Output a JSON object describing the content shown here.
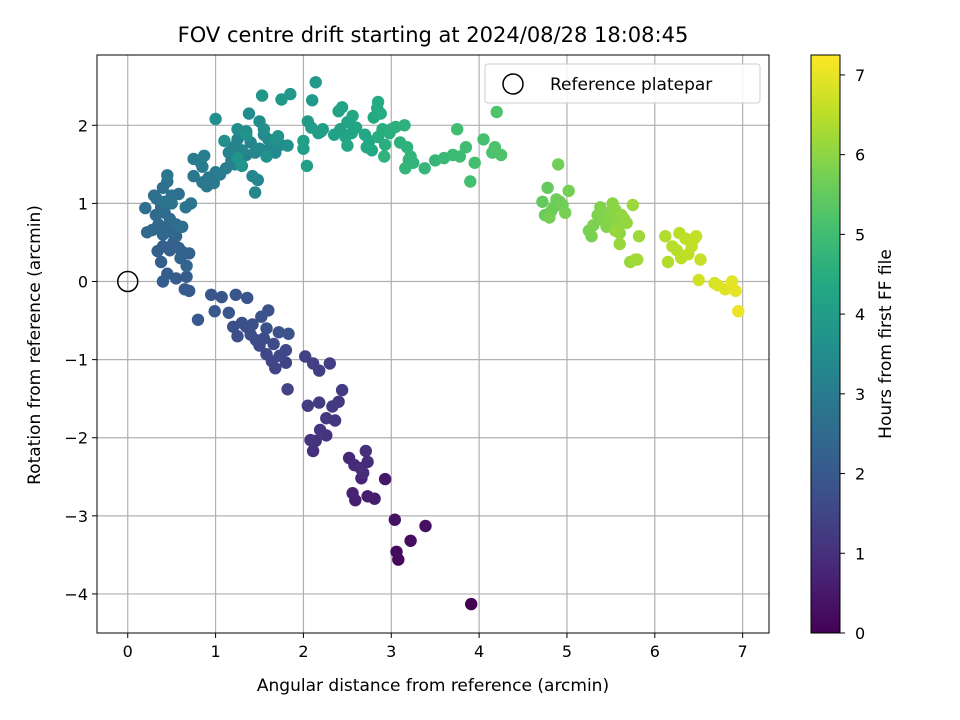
{
  "chart_data": {
    "type": "scatter",
    "title": "FOV centre drift starting at 2024/08/28 18:08:45",
    "xlabel": "Angular distance from reference (arcmin)",
    "ylabel": "Rotation from reference (arcmin)",
    "xlim": [
      -0.35,
      7.3
    ],
    "ylim": [
      -4.5,
      2.9
    ],
    "xticks": [
      0,
      1,
      2,
      3,
      4,
      5,
      6,
      7
    ],
    "yticks": [
      -4,
      -3,
      -2,
      -1,
      0,
      1,
      2
    ],
    "grid": true,
    "legend": {
      "placement": "top-right",
      "entries": [
        "Reference platepar"
      ]
    },
    "reference_point": {
      "x": 0,
      "y": 0,
      "marker": "open-circle"
    },
    "colorbar": {
      "label": "Hours from first FF file",
      "range": [
        0,
        7.25
      ],
      "ticks": [
        0,
        1,
        2,
        3,
        4,
        5,
        6,
        7
      ],
      "colormap": "viridis"
    },
    "points": [
      [
        3.91,
        -4.13,
        0.0
      ],
      [
        3.08,
        -3.56,
        0.15
      ],
      [
        3.06,
        -3.46,
        0.2
      ],
      [
        3.22,
        -3.32,
        0.25
      ],
      [
        3.39,
        -3.13,
        0.3
      ],
      [
        3.04,
        -3.05,
        0.35
      ],
      [
        2.93,
        -2.53,
        0.45
      ],
      [
        2.81,
        -2.78,
        0.55
      ],
      [
        2.73,
        -2.75,
        0.6
      ],
      [
        2.59,
        -2.8,
        0.65
      ],
      [
        2.56,
        -2.71,
        0.7
      ],
      [
        2.66,
        -2.52,
        0.75
      ],
      [
        2.52,
        -2.26,
        0.8
      ],
      [
        2.58,
        -2.35,
        0.85
      ],
      [
        2.65,
        -2.39,
        0.9
      ],
      [
        2.73,
        -2.31,
        0.92
      ],
      [
        2.68,
        -2.45,
        0.95
      ],
      [
        2.71,
        -2.17,
        0.97
      ],
      [
        2.11,
        -2.17,
        1.0
      ],
      [
        2.14,
        -2.04,
        1.05
      ],
      [
        2.26,
        -1.97,
        1.08
      ],
      [
        2.19,
        -1.9,
        1.1
      ],
      [
        2.08,
        -2.03,
        1.12
      ],
      [
        2.36,
        -1.78,
        1.15
      ],
      [
        2.26,
        -1.75,
        1.18
      ],
      [
        2.4,
        -1.54,
        1.2
      ],
      [
        2.33,
        -1.6,
        1.22
      ],
      [
        2.44,
        -1.39,
        1.25
      ],
      [
        2.18,
        -1.55,
        1.27
      ],
      [
        2.05,
        -1.59,
        1.3
      ],
      [
        2.3,
        -1.05,
        1.32
      ],
      [
        2.18,
        -1.14,
        1.35
      ],
      [
        2.11,
        -1.05,
        1.37
      ],
      [
        2.02,
        -0.96,
        1.4
      ],
      [
        1.8,
        -1.04,
        1.42
      ],
      [
        1.82,
        -1.38,
        1.45
      ],
      [
        1.68,
        -1.11,
        1.47
      ],
      [
        1.64,
        -1.02,
        1.5
      ],
      [
        1.58,
        -0.93,
        1.52
      ],
      [
        1.73,
        -0.95,
        1.55
      ],
      [
        1.8,
        -0.88,
        1.57
      ],
      [
        1.66,
        -0.8,
        1.6
      ],
      [
        1.5,
        -0.82,
        1.62
      ],
      [
        1.55,
        -0.73,
        1.64
      ],
      [
        1.46,
        -0.75,
        1.66
      ],
      [
        1.4,
        -0.68,
        1.68
      ],
      [
        1.35,
        -0.58,
        1.7
      ],
      [
        1.25,
        -0.7,
        1.72
      ],
      [
        1.2,
        -0.58,
        1.74
      ],
      [
        1.3,
        -0.53,
        1.76
      ],
      [
        1.42,
        -0.55,
        1.78
      ],
      [
        1.58,
        -0.6,
        1.8
      ],
      [
        1.72,
        -0.65,
        1.82
      ],
      [
        1.83,
        -0.67,
        1.84
      ],
      [
        1.52,
        -0.45,
        1.86
      ],
      [
        1.6,
        -0.37,
        1.88
      ],
      [
        1.36,
        -0.21,
        1.9
      ],
      [
        1.23,
        -0.17,
        1.92
      ],
      [
        1.07,
        -0.2,
        1.94
      ],
      [
        0.95,
        -0.17,
        1.96
      ],
      [
        1.15,
        -0.4,
        1.98
      ],
      [
        0.99,
        -0.38,
        2.0
      ],
      [
        0.8,
        -0.49,
        2.02
      ],
      [
        0.7,
        -0.12,
        2.04
      ],
      [
        0.65,
        -0.1,
        2.06
      ],
      [
        0.55,
        0.04,
        2.08
      ],
      [
        0.67,
        0.06,
        2.1
      ],
      [
        0.4,
        0.0,
        2.12
      ],
      [
        0.45,
        0.1,
        2.14
      ],
      [
        0.38,
        0.25,
        2.16
      ],
      [
        0.34,
        0.39,
        2.18
      ],
      [
        0.4,
        0.45,
        2.2
      ],
      [
        0.48,
        0.4,
        2.22
      ],
      [
        0.52,
        0.5,
        2.24
      ],
      [
        0.58,
        0.43,
        2.26
      ],
      [
        0.62,
        0.38,
        2.28
      ],
      [
        0.7,
        0.36,
        2.3
      ],
      [
        0.67,
        0.2,
        2.32
      ],
      [
        0.6,
        0.3,
        2.34
      ],
      [
        0.55,
        0.58,
        2.36
      ],
      [
        0.5,
        0.63,
        2.38
      ],
      [
        0.45,
        0.7,
        2.4
      ],
      [
        0.4,
        0.6,
        2.42
      ],
      [
        0.35,
        0.73,
        2.44
      ],
      [
        0.28,
        0.66,
        2.46
      ],
      [
        0.22,
        0.63,
        2.48
      ],
      [
        0.32,
        0.85,
        2.5
      ],
      [
        0.38,
        0.95,
        2.52
      ],
      [
        0.42,
        0.88,
        2.54
      ],
      [
        0.48,
        0.8,
        2.56
      ],
      [
        0.55,
        0.73,
        2.58
      ],
      [
        0.62,
        0.7,
        2.6
      ],
      [
        0.2,
        0.94,
        2.62
      ],
      [
        0.33,
        1.06,
        2.64
      ],
      [
        0.3,
        1.1,
        2.66
      ],
      [
        0.4,
        1.2,
        2.68
      ],
      [
        0.45,
        1.28,
        2.7
      ],
      [
        0.5,
        1.1,
        2.72
      ],
      [
        0.58,
        1.12,
        2.74
      ],
      [
        0.5,
        1.0,
        2.76
      ],
      [
        0.42,
        1.02,
        2.78
      ],
      [
        0.45,
        1.36,
        2.8
      ],
      [
        0.66,
        0.95,
        2.82
      ],
      [
        0.72,
        1.0,
        2.84
      ],
      [
        0.75,
        1.35,
        2.86
      ],
      [
        0.85,
        1.27,
        2.88
      ],
      [
        0.9,
        1.22,
        2.9
      ],
      [
        0.98,
        1.26,
        2.92
      ],
      [
        0.92,
        1.33,
        2.94
      ],
      [
        1.0,
        1.4,
        2.96
      ],
      [
        0.85,
        1.47,
        2.98
      ],
      [
        0.75,
        1.57,
        3.0
      ],
      [
        0.83,
        1.52,
        3.02
      ],
      [
        0.87,
        1.61,
        3.04
      ],
      [
        1.05,
        1.37,
        3.06
      ],
      [
        1.12,
        1.45,
        3.08
      ],
      [
        1.18,
        1.55,
        3.1
      ],
      [
        1.22,
        1.5,
        3.12
      ],
      [
        1.28,
        1.58,
        3.14
      ],
      [
        1.35,
        1.62,
        3.16
      ],
      [
        1.15,
        1.65,
        3.18
      ],
      [
        1.2,
        1.72,
        3.2
      ],
      [
        1.25,
        1.82,
        3.22
      ],
      [
        1.3,
        1.68,
        3.24
      ],
      [
        1.4,
        1.78,
        3.26
      ],
      [
        1.45,
        1.65,
        3.28
      ],
      [
        1.48,
        1.3,
        3.3
      ],
      [
        1.45,
        1.14,
        3.32
      ],
      [
        1.42,
        1.35,
        3.34
      ],
      [
        1.5,
        1.7,
        3.36
      ],
      [
        1.55,
        1.88,
        3.38
      ],
      [
        1.62,
        1.72,
        3.4
      ],
      [
        1.68,
        1.65,
        3.42
      ],
      [
        1.74,
        1.75,
        3.44
      ],
      [
        1.6,
        1.82,
        3.46
      ],
      [
        1.35,
        1.92,
        3.48
      ],
      [
        1.25,
        1.95,
        3.5
      ],
      [
        1.38,
        2.15,
        3.52
      ],
      [
        1.5,
        2.05,
        3.54
      ],
      [
        1.0,
        2.08,
        3.56
      ],
      [
        1.1,
        1.8,
        3.58
      ],
      [
        1.55,
        1.95,
        3.6
      ],
      [
        1.68,
        1.8,
        3.62
      ],
      [
        1.82,
        1.74,
        3.64
      ],
      [
        1.58,
        1.6,
        3.66
      ],
      [
        1.71,
        1.86,
        3.68
      ],
      [
        1.35,
        1.88,
        3.7
      ],
      [
        1.25,
        1.58,
        3.72
      ],
      [
        1.3,
        1.48,
        3.74
      ],
      [
        1.53,
        2.38,
        3.8
      ],
      [
        1.75,
        2.33,
        3.82
      ],
      [
        1.85,
        2.4,
        3.84
      ],
      [
        2.1,
        2.32,
        3.88
      ],
      [
        2.14,
        2.55,
        3.92
      ],
      [
        2.05,
        2.05,
        3.95
      ],
      [
        2.09,
        1.97,
        3.98
      ],
      [
        2.17,
        1.9,
        4.0
      ],
      [
        2.2,
        1.92,
        4.02
      ],
      [
        2.22,
        1.95,
        4.04
      ],
      [
        2.0,
        1.8,
        4.06
      ],
      [
        2.0,
        1.7,
        4.08
      ],
      [
        2.04,
        1.48,
        4.1
      ],
      [
        2.35,
        1.88,
        4.12
      ],
      [
        2.42,
        1.95,
        4.14
      ],
      [
        2.4,
        2.18,
        4.16
      ],
      [
        2.44,
        2.23,
        4.18
      ],
      [
        2.5,
        2.04,
        4.2
      ],
      [
        2.55,
        1.9,
        4.22
      ],
      [
        2.6,
        1.97,
        4.24
      ],
      [
        2.48,
        1.85,
        4.26
      ],
      [
        2.5,
        1.74,
        4.28
      ],
      [
        2.56,
        2.12,
        4.3
      ],
      [
        2.7,
        1.88,
        4.32
      ],
      [
        2.72,
        1.72,
        4.34
      ],
      [
        2.75,
        1.8,
        4.36
      ],
      [
        2.78,
        1.68,
        4.38
      ],
      [
        2.8,
        2.1,
        4.4
      ],
      [
        2.84,
        2.22,
        4.42
      ],
      [
        2.85,
        2.3,
        4.44
      ],
      [
        2.88,
        2.15,
        4.46
      ],
      [
        2.9,
        1.95,
        4.48
      ],
      [
        2.85,
        1.85,
        4.5
      ],
      [
        2.93,
        1.75,
        4.52
      ],
      [
        2.98,
        1.9,
        4.54
      ],
      [
        3.0,
        1.95,
        4.56
      ],
      [
        3.05,
        1.98,
        4.58
      ],
      [
        3.1,
        1.78,
        4.6
      ],
      [
        3.15,
        2.0,
        4.62
      ],
      [
        3.18,
        1.72,
        4.64
      ],
      [
        2.92,
        1.6,
        4.66
      ],
      [
        3.2,
        1.56,
        4.68
      ],
      [
        3.22,
        1.6,
        4.7
      ],
      [
        3.25,
        1.52,
        4.72
      ],
      [
        3.16,
        1.45,
        4.74
      ],
      [
        3.38,
        1.45,
        4.76
      ],
      [
        3.5,
        1.55,
        4.8
      ],
      [
        3.6,
        1.58,
        4.85
      ],
      [
        3.7,
        1.62,
        4.9
      ],
      [
        3.78,
        1.6,
        4.95
      ],
      [
        3.85,
        1.72,
        5.0
      ],
      [
        3.75,
        1.95,
        5.02
      ],
      [
        3.95,
        1.52,
        5.05
      ],
      [
        3.9,
        1.28,
        5.08
      ],
      [
        4.05,
        1.82,
        5.1
      ],
      [
        4.15,
        1.65,
        5.15
      ],
      [
        4.18,
        1.72,
        5.18
      ],
      [
        4.25,
        1.62,
        5.2
      ],
      [
        4.2,
        2.17,
        5.22
      ],
      [
        4.72,
        1.02,
        5.5
      ],
      [
        4.78,
        1.2,
        5.52
      ],
      [
        4.75,
        0.85,
        5.55
      ],
      [
        4.82,
        0.9,
        5.58
      ],
      [
        4.85,
        0.95,
        5.6
      ],
      [
        4.88,
        1.05,
        5.62
      ],
      [
        4.92,
        1.02,
        5.64
      ],
      [
        4.95,
        0.98,
        5.66
      ],
      [
        4.9,
        1.5,
        5.68
      ],
      [
        5.02,
        1.16,
        5.7
      ],
      [
        4.8,
        0.82,
        5.72
      ],
      [
        4.98,
        0.88,
        5.74
      ],
      [
        5.25,
        0.65,
        5.78
      ],
      [
        5.28,
        0.58,
        5.8
      ],
      [
        5.3,
        0.72,
        5.82
      ],
      [
        5.35,
        0.85,
        5.84
      ],
      [
        5.38,
        0.95,
        5.86
      ],
      [
        5.42,
        0.78,
        5.88
      ],
      [
        5.45,
        0.7,
        5.9
      ],
      [
        5.48,
        0.88,
        5.92
      ],
      [
        5.5,
        0.82,
        5.94
      ],
      [
        5.52,
        1.0,
        5.96
      ],
      [
        5.55,
        0.92,
        5.98
      ],
      [
        5.58,
        0.75,
        6.0
      ],
      [
        5.6,
        0.62,
        6.02
      ],
      [
        5.62,
        0.85,
        6.04
      ],
      [
        5.65,
        0.8,
        6.06
      ],
      [
        5.68,
        0.75,
        6.08
      ],
      [
        5.55,
        0.65,
        6.1
      ],
      [
        5.6,
        0.48,
        6.12
      ],
      [
        5.72,
        0.25,
        6.14
      ],
      [
        5.75,
        0.98,
        6.16
      ],
      [
        5.8,
        0.28,
        6.18
      ],
      [
        5.82,
        0.58,
        6.2
      ],
      [
        5.78,
        0.28,
        6.22
      ],
      [
        6.12,
        0.58,
        6.4
      ],
      [
        6.15,
        0.25,
        6.42
      ],
      [
        6.2,
        0.45,
        6.44
      ],
      [
        6.25,
        0.4,
        6.46
      ],
      [
        6.28,
        0.62,
        6.48
      ],
      [
        6.3,
        0.3,
        6.5
      ],
      [
        6.35,
        0.55,
        6.52
      ],
      [
        6.38,
        0.35,
        6.54
      ],
      [
        6.42,
        0.45,
        6.56
      ],
      [
        6.45,
        0.55,
        6.58
      ],
      [
        6.47,
        0.58,
        6.6
      ],
      [
        6.52,
        0.28,
        6.62
      ],
      [
        6.5,
        0.02,
        6.75
      ],
      [
        6.68,
        -0.02,
        6.8
      ],
      [
        6.72,
        -0.05,
        6.85
      ],
      [
        6.8,
        -0.1,
        6.9
      ],
      [
        6.85,
        -0.08,
        6.92
      ],
      [
        6.88,
        0.0,
        6.95
      ],
      [
        6.92,
        -0.12,
        7.0
      ],
      [
        6.95,
        -0.38,
        7.05
      ]
    ]
  }
}
